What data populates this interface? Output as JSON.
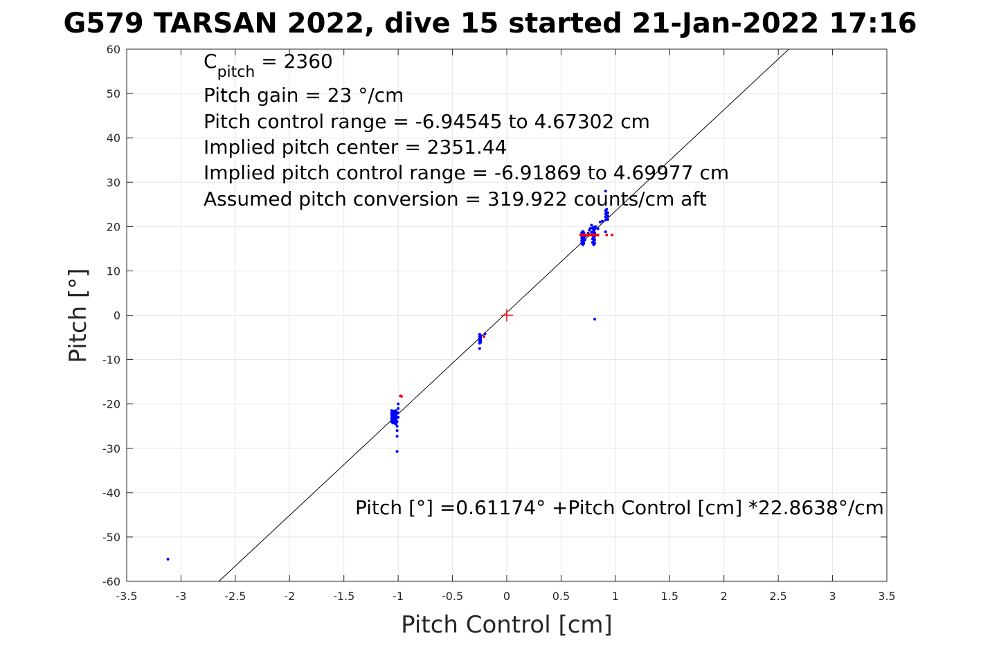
{
  "chart_data": {
    "type": "scatter",
    "title": "G579 TARSAN 2022, dive 15 started 21-Jan-2022 17:16",
    "xlabel": "Pitch Control [cm]",
    "ylabel": "Pitch [°]",
    "xlim": [
      -3.5,
      3.5
    ],
    "ylim": [
      -60,
      60
    ],
    "xticks": [
      -3.5,
      -3,
      -2.5,
      -2,
      -1.5,
      -1,
      -0.5,
      0,
      0.5,
      1,
      1.5,
      2,
      2.5,
      3,
      3.5
    ],
    "xtick_labels": [
      "-3.5",
      "-3",
      "-2.5",
      "-2",
      "-1.5",
      "-1",
      "-0.5",
      "0",
      "0.5",
      "1",
      "1.5",
      "2",
      "2.5",
      "3",
      "3.5"
    ],
    "yticks": [
      -60,
      -50,
      -40,
      -30,
      -20,
      -10,
      0,
      10,
      20,
      30,
      40,
      50,
      60
    ],
    "ytick_labels": [
      "-60",
      "-50",
      "-40",
      "-30",
      "-20",
      "-10",
      "0",
      "10",
      "20",
      "30",
      "40",
      "50",
      "60"
    ],
    "grid": true,
    "colors": {
      "blue_points": "#0000ff",
      "red_points": "#ff0000",
      "fit_line": "#000000",
      "grid": "#e6e6e6",
      "axes": "#262626"
    },
    "annotations": {
      "c_pitch_symbol": "C",
      "c_pitch_sub": "pitch",
      "c_pitch_value": " = 2360",
      "lines": [
        "Pitch gain = 23 °/cm",
        "Pitch control range = -6.94545 to 4.67302 cm",
        "Implied pitch center = 2351.44",
        "Implied pitch control range = -6.91869 to 4.69977 cm",
        "Assumed pitch conversion = 319.922 counts/cm aft"
      ],
      "fit_equation": "Pitch [°] =0.61174° +Pitch Control [cm] *22.8638°/cm"
    },
    "fit_line": {
      "intercept": 0.61174,
      "slope": 22.8638
    },
    "center_marker": {
      "x": 0,
      "y": 0,
      "color": "#ff0000"
    },
    "series": [
      {
        "color": "#0000ff",
        "points": [
          [
            -3.12,
            -55
          ],
          [
            -1.06,
            -21.5
          ],
          [
            -1.06,
            -22.0
          ],
          [
            -1.06,
            -22.5
          ],
          [
            -1.06,
            -23.0
          ],
          [
            -1.06,
            -23.5
          ],
          [
            -1.06,
            -24.0
          ],
          [
            -1.05,
            -21.8
          ],
          [
            -1.05,
            -22.3
          ],
          [
            -1.05,
            -22.8
          ],
          [
            -1.05,
            -23.3
          ],
          [
            -1.05,
            -23.8
          ],
          [
            -1.05,
            -24.3
          ],
          [
            -1.04,
            -21.6
          ],
          [
            -1.04,
            -22.1
          ],
          [
            -1.04,
            -22.6
          ],
          [
            -1.04,
            -23.1
          ],
          [
            -1.04,
            -23.6
          ],
          [
            -1.04,
            -24.1
          ],
          [
            -1.03,
            -21.9
          ],
          [
            -1.03,
            -22.4
          ],
          [
            -1.03,
            -22.9
          ],
          [
            -1.03,
            -23.4
          ],
          [
            -1.03,
            -23.9
          ],
          [
            -1.03,
            -24.4
          ],
          [
            -1.02,
            -21.5
          ],
          [
            -1.02,
            -22.0
          ],
          [
            -1.02,
            -22.5
          ],
          [
            -1.02,
            -23.0
          ],
          [
            -1.02,
            -23.5
          ],
          [
            -1.02,
            -24.0
          ],
          [
            -1.02,
            -24.5
          ],
          [
            -1.01,
            -22.0
          ],
          [
            -1.01,
            -23.0
          ],
          [
            -1.01,
            -24.0
          ],
          [
            -1.01,
            -25.0
          ],
          [
            -1.01,
            -26.0
          ],
          [
            -1.01,
            -27.3
          ],
          [
            -1.01,
            -30.7
          ],
          [
            -1.0,
            -20.0
          ],
          [
            -1.0,
            -21.0
          ],
          [
            -1.0,
            -22.0
          ],
          [
            -1.0,
            -23.0
          ],
          [
            -0.25,
            -4.3
          ],
          [
            -0.25,
            -4.8
          ],
          [
            -0.25,
            -5.3
          ],
          [
            -0.25,
            -5.8
          ],
          [
            -0.25,
            -6.3
          ],
          [
            -0.25,
            -7.5
          ],
          [
            -0.24,
            -4.6
          ],
          [
            -0.24,
            -5.1
          ],
          [
            -0.24,
            -5.6
          ],
          [
            -0.24,
            -6.1
          ],
          [
            -0.2,
            -4.2
          ],
          [
            0.69,
            16.2
          ],
          [
            0.69,
            16.8
          ],
          [
            0.69,
            17.4
          ],
          [
            0.69,
            18.0
          ],
          [
            0.69,
            18.6
          ],
          [
            0.7,
            15.9
          ],
          [
            0.7,
            16.5
          ],
          [
            0.7,
            17.1
          ],
          [
            0.7,
            17.7
          ],
          [
            0.7,
            18.3
          ],
          [
            0.7,
            18.9
          ],
          [
            0.71,
            16.2
          ],
          [
            0.71,
            16.8
          ],
          [
            0.71,
            17.4
          ],
          [
            0.71,
            18.0
          ],
          [
            0.71,
            18.6
          ],
          [
            0.72,
            17.0
          ],
          [
            0.72,
            17.8
          ],
          [
            0.75,
            18.5
          ],
          [
            0.76,
            19.2
          ],
          [
            0.77,
            19.6
          ],
          [
            0.78,
            20.3
          ],
          [
            0.78,
            18.7
          ],
          [
            0.79,
            16.4
          ],
          [
            0.79,
            17.2
          ],
          [
            0.79,
            18.0
          ],
          [
            0.79,
            18.8
          ],
          [
            0.79,
            19.6
          ],
          [
            0.8,
            15.9
          ],
          [
            0.8,
            16.7
          ],
          [
            0.8,
            17.5
          ],
          [
            0.8,
            18.3
          ],
          [
            0.8,
            19.1
          ],
          [
            0.8,
            19.9
          ],
          [
            0.81,
            16.2
          ],
          [
            0.81,
            17.0
          ],
          [
            0.81,
            17.8
          ],
          [
            0.81,
            18.6
          ],
          [
            0.81,
            19.4
          ],
          [
            0.82,
            20.0
          ],
          [
            0.84,
            19.5
          ],
          [
            0.86,
            21.0
          ],
          [
            0.88,
            21.2
          ],
          [
            0.81,
            -0.9
          ],
          [
            0.91,
            18.8
          ],
          [
            0.91,
            21.5
          ],
          [
            0.91,
            22.2
          ],
          [
            0.91,
            22.9
          ],
          [
            0.91,
            23.6
          ],
          [
            0.92,
            21.8
          ],
          [
            0.92,
            22.5
          ],
          [
            0.92,
            23.2
          ],
          [
            0.92,
            23.9
          ],
          [
            0.93,
            21.6
          ],
          [
            0.93,
            22.4
          ],
          [
            0.93,
            23.1
          ],
          [
            0.91,
            28.0
          ]
        ]
      },
      {
        "color": "#ff0000",
        "points": [
          [
            -0.98,
            -18.2
          ],
          [
            -0.97,
            -18.3
          ],
          [
            -0.21,
            -4.8
          ],
          [
            0.68,
            18.1
          ],
          [
            0.7,
            18.1
          ],
          [
            0.72,
            18.1
          ],
          [
            0.74,
            18.1
          ],
          [
            0.76,
            18.1
          ],
          [
            0.78,
            18.1
          ],
          [
            0.8,
            18.1
          ],
          [
            0.82,
            18.1
          ],
          [
            0.84,
            18.1
          ],
          [
            0.92,
            18.1
          ],
          [
            0.97,
            18.1
          ]
        ]
      }
    ]
  }
}
